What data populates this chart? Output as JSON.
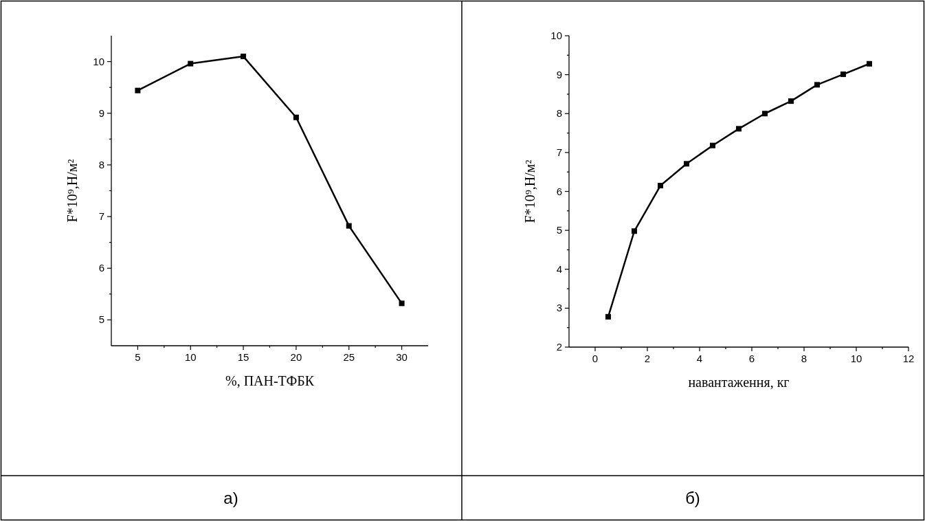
{
  "chart_data": [
    {
      "type": "line",
      "xlabel": "%, ПАН-ТФБК",
      "ylabel": "F*10⁹,Н/м²",
      "x": [
        5,
        10,
        15,
        20,
        25,
        30
      ],
      "series": [
        {
          "color": "#000000",
          "values": [
            9.44,
            9.96,
            10.1,
            8.92,
            6.82,
            5.32
          ]
        }
      ],
      "xlim": [
        2.5,
        32.5
      ],
      "ylim": [
        4.5,
        10.5
      ],
      "xticks": [
        5,
        {
          "value": 7.5,
          "label": null
        },
        10,
        {
          "value": 12.5,
          "label": null
        },
        15,
        {
          "value": 17.5,
          "label": null
        },
        20,
        {
          "value": 22.5,
          "label": null
        },
        25,
        {
          "value": 27.5,
          "label": null
        },
        30
      ],
      "yticks": [
        5,
        {
          "value": 5.5,
          "label": null
        },
        6,
        {
          "value": 6.5,
          "label": null
        },
        7,
        {
          "value": 7.5,
          "label": null
        },
        8,
        {
          "value": 8.5,
          "label": null
        },
        9,
        {
          "value": 9.5,
          "label": null
        },
        10
      ],
      "marker": "square",
      "line_style": "solid",
      "grid": false,
      "annotations": [
        "а)"
      ]
    },
    {
      "type": "line",
      "xlabel": "навантаження, кг",
      "ylabel": "F*10⁹,Н/м²",
      "x": [
        0.5,
        1.5,
        2.5,
        3.5,
        4.5,
        5.5,
        6.5,
        7.5,
        8.5,
        9.5,
        10.5
      ],
      "series": [
        {
          "color": "#000000",
          "values": [
            2.78,
            4.98,
            6.15,
            6.71,
            7.18,
            7.61,
            8.0,
            8.32,
            8.74,
            9.01,
            9.28
          ]
        }
      ],
      "xlim": [
        -1,
        12
      ],
      "ylim": [
        2,
        10
      ],
      "xticks": [
        0,
        {
          "value": 1,
          "label": null
        },
        2,
        {
          "value": 3,
          "label": null
        },
        4,
        {
          "value": 5,
          "label": null
        },
        6,
        {
          "value": 7,
          "label": null
        },
        8,
        {
          "value": 9,
          "label": null
        },
        10,
        {
          "value": 11,
          "label": null
        },
        12
      ],
      "yticks": [
        2,
        {
          "value": 2.5,
          "label": null
        },
        3,
        {
          "value": 3.5,
          "label": null
        },
        4,
        {
          "value": 4.5,
          "label": null
        },
        5,
        {
          "value": 5.5,
          "label": null
        },
        6,
        {
          "value": 6.5,
          "label": null
        },
        7,
        {
          "value": 7.5,
          "label": null
        },
        8,
        {
          "value": 8.5,
          "label": null
        },
        9,
        {
          "value": 9.5,
          "label": null
        },
        10
      ],
      "marker": "square",
      "line_style": "solid",
      "grid": false,
      "annotations": [
        "б)"
      ]
    }
  ]
}
